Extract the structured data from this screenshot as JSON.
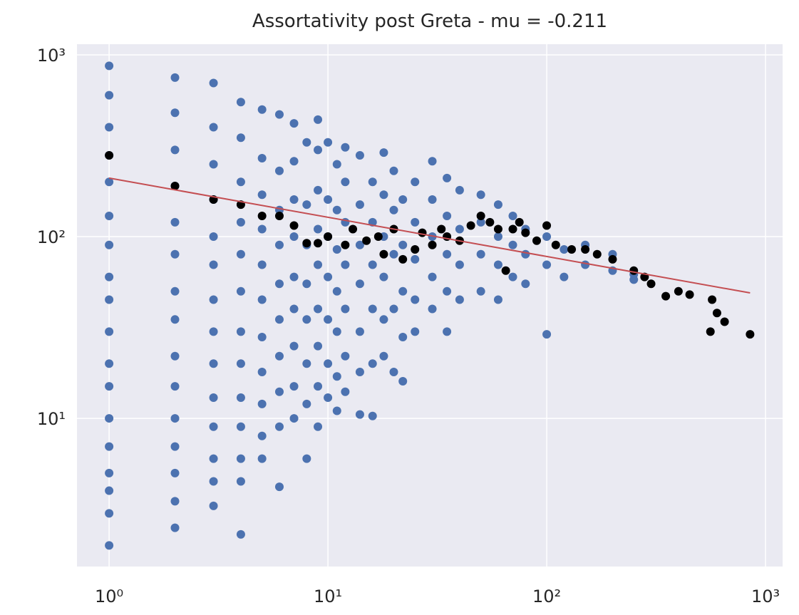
{
  "chart_data": {
    "type": "scatter",
    "title": "Assortativity post Greta - mu = -0.211",
    "xscale": "log",
    "yscale": "log",
    "grid": true,
    "xlim": [
      0.713,
      1197
    ],
    "ylim": [
      1.53,
      1145
    ],
    "xticks": [
      {
        "value": 1,
        "label": "10⁰"
      },
      {
        "value": 10,
        "label": "10¹"
      },
      {
        "value": 100,
        "label": "10²"
      },
      {
        "value": 1000,
        "label": "10³"
      }
    ],
    "yticks": [
      {
        "value": 10,
        "label": "10¹"
      },
      {
        "value": 100,
        "label": "10²"
      },
      {
        "value": 1000,
        "label": "10³"
      }
    ],
    "series": [
      {
        "type": "scatter",
        "color": "#4c72b0",
        "x": [
          1,
          1,
          1,
          1,
          1,
          1,
          1,
          1,
          1,
          1,
          1,
          1,
          1,
          1,
          1,
          1,
          1,
          1,
          2,
          2,
          2,
          2,
          2,
          2,
          2,
          2,
          2,
          2,
          2,
          2,
          2,
          2,
          2,
          3,
          3,
          3,
          3,
          3,
          3,
          3,
          3,
          3,
          3,
          3,
          3,
          3,
          3,
          4,
          4,
          4,
          4,
          4,
          4,
          4,
          4,
          4,
          4,
          4,
          4,
          4,
          5,
          5,
          5,
          5,
          5,
          5,
          5,
          5,
          5,
          5,
          5,
          6,
          6,
          6,
          6,
          6,
          6,
          6,
          6,
          6,
          6,
          7,
          7,
          7,
          7,
          7,
          7,
          7,
          7,
          7,
          8,
          8,
          8,
          8,
          8,
          8,
          8,
          8,
          9,
          9,
          9,
          9,
          9,
          9,
          9,
          9,
          9,
          10,
          10,
          10,
          10,
          10,
          10,
          10,
          11,
          11,
          11,
          11,
          11,
          11,
          11,
          12,
          12,
          12,
          12,
          12,
          12,
          12,
          14,
          14,
          14,
          14,
          14,
          14,
          14,
          16,
          16,
          16,
          16,
          16,
          16,
          18,
          18,
          18,
          18,
          18,
          18,
          20,
          20,
          20,
          20,
          20,
          22,
          22,
          22,
          22,
          22,
          25,
          25,
          25,
          25,
          25,
          30,
          30,
          30,
          30,
          30,
          35,
          35,
          35,
          35,
          35,
          40,
          40,
          40,
          40,
          50,
          50,
          50,
          50,
          60,
          60,
          60,
          60,
          70,
          70,
          70,
          80,
          80,
          80,
          100,
          100,
          100,
          120,
          120,
          150,
          150,
          200,
          200,
          250,
          250
        ],
        "values": [
          2,
          3,
          4,
          5,
          7,
          10,
          15,
          20,
          30,
          45,
          60,
          90,
          130,
          200,
          280,
          400,
          600,
          870,
          2.5,
          3.5,
          5,
          7,
          10,
          15,
          22,
          35,
          50,
          80,
          120,
          190,
          300,
          480,
          750,
          3.3,
          4.5,
          6,
          9,
          13,
          20,
          30,
          45,
          70,
          100,
          160,
          250,
          400,
          700,
          2.3,
          4.5,
          6,
          9,
          13,
          20,
          30,
          50,
          80,
          120,
          200,
          350,
          550,
          6,
          8,
          12,
          18,
          28,
          45,
          70,
          110,
          170,
          270,
          500,
          4.2,
          9,
          14,
          22,
          35,
          55,
          90,
          140,
          230,
          470,
          10,
          15,
          25,
          40,
          60,
          100,
          160,
          260,
          420,
          6,
          12,
          20,
          35,
          55,
          90,
          150,
          330,
          9,
          15,
          25,
          40,
          70,
          110,
          180,
          300,
          440,
          13,
          20,
          35,
          60,
          100,
          160,
          330,
          11,
          17,
          30,
          50,
          85,
          140,
          250,
          14,
          22,
          40,
          70,
          120,
          200,
          310,
          10.5,
          18,
          30,
          55,
          90,
          150,
          280,
          10.3,
          20,
          40,
          70,
          120,
          200,
          22,
          35,
          60,
          100,
          170,
          290,
          18,
          40,
          80,
          140,
          230,
          16,
          28,
          50,
          90,
          160,
          30,
          45,
          75,
          120,
          200,
          40,
          60,
          100,
          160,
          260,
          30,
          50,
          80,
          130,
          210,
          45,
          70,
          110,
          180,
          50,
          80,
          120,
          170,
          45,
          70,
          100,
          150,
          60,
          90,
          130,
          55,
          80,
          110,
          29,
          70,
          100,
          60,
          85,
          70,
          90,
          65,
          80,
          58,
          62
        ]
      },
      {
        "type": "scatter",
        "color": "#000000",
        "x": [
          1,
          2,
          3,
          4,
          5,
          6,
          7,
          8,
          9,
          10,
          12,
          13,
          15,
          17,
          18,
          20,
          22,
          25,
          27,
          30,
          33,
          35,
          40,
          45,
          50,
          55,
          60,
          65,
          70,
          75,
          80,
          90,
          100,
          110,
          130,
          150,
          170,
          200,
          250,
          280,
          300,
          350,
          400,
          450,
          560,
          570,
          600,
          650,
          850
        ],
        "values": [
          280,
          190,
          160,
          150,
          130,
          130,
          115,
          92,
          92,
          100,
          90,
          110,
          95,
          100,
          80,
          110,
          75,
          85,
          105,
          90,
          110,
          100,
          95,
          115,
          130,
          120,
          110,
          65,
          110,
          120,
          105,
          95,
          115,
          90,
          85,
          85,
          80,
          75,
          65,
          60,
          55,
          47,
          50,
          48,
          30,
          45,
          38,
          34,
          29
        ]
      },
      {
        "type": "line",
        "color": "#c44e52",
        "x": [
          1,
          850
        ],
        "values": [
          210,
          49
        ]
      }
    ]
  }
}
